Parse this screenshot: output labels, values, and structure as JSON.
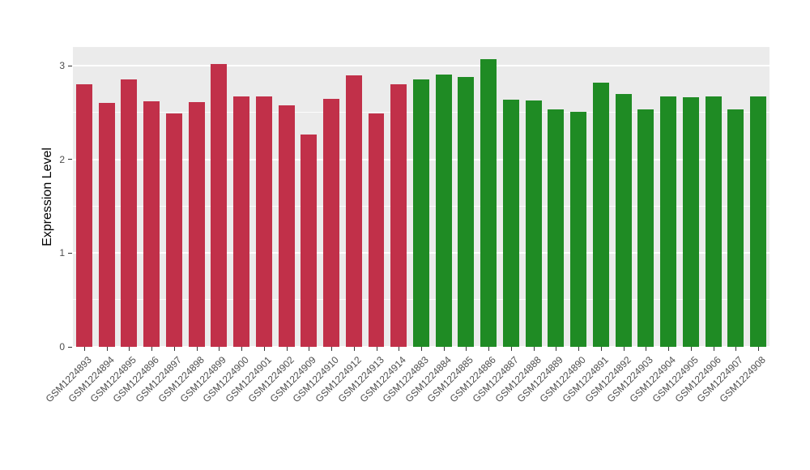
{
  "chart_data": {
    "type": "bar",
    "title": "",
    "xlabel": "",
    "ylabel": "Expression Level",
    "ylim": [
      0,
      3.2
    ],
    "yticks": [
      0,
      1,
      2,
      3
    ],
    "minor_ticks": [
      0.5,
      1.5,
      2.5
    ],
    "grid": true,
    "legend": false,
    "categories": [
      "GSM1224893",
      "GSM1224894",
      "GSM1224895",
      "GSM1224896",
      "GSM1224897",
      "GSM1224898",
      "GSM1224899",
      "GSM1224900",
      "GSM1224901",
      "GSM1224902",
      "GSM1224909",
      "GSM1224910",
      "GSM1224912",
      "GSM1224913",
      "GSM1224914",
      "GSM1224883",
      "GSM1224884",
      "GSM1224885",
      "GSM1224886",
      "GSM1224887",
      "GSM1224888",
      "GSM1224889",
      "GSM1224890",
      "GSM1224891",
      "GSM1224892",
      "GSM1224903",
      "GSM1224904",
      "GSM1224905",
      "GSM1224906",
      "GSM1224907",
      "GSM1224908"
    ],
    "values": [
      2.8,
      2.6,
      2.85,
      2.62,
      2.49,
      2.61,
      3.02,
      2.67,
      2.67,
      2.58,
      2.27,
      2.65,
      2.9,
      2.49,
      2.8,
      2.85,
      2.91,
      2.88,
      3.07,
      2.64,
      2.63,
      2.53,
      2.51,
      2.82,
      2.7,
      2.53,
      2.67,
      2.66,
      2.67,
      2.53,
      2.67
    ],
    "bar_groups": [
      "red",
      "red",
      "red",
      "red",
      "red",
      "red",
      "red",
      "red",
      "red",
      "red",
      "red",
      "red",
      "red",
      "red",
      "red",
      "green",
      "green",
      "green",
      "green",
      "green",
      "green",
      "green",
      "green",
      "green",
      "green",
      "green",
      "green",
      "green",
      "green",
      "green",
      "green"
    ],
    "group_colors": {
      "red": "#C13049",
      "green": "#1F8B24"
    },
    "panel_background": "#EBEBEB",
    "gridline_color": "#FFFFFF"
  }
}
